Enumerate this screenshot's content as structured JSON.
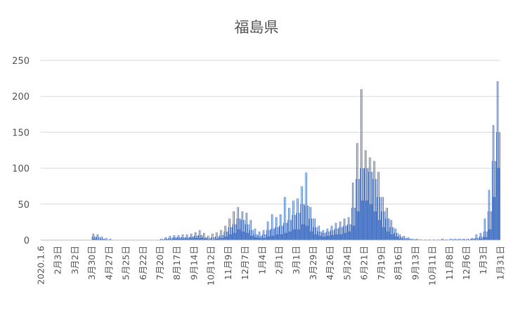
{
  "chart_data": {
    "type": "bar",
    "title": "福島県",
    "xlabel": "",
    "ylabel": "",
    "ylim": [
      0,
      250
    ],
    "yticks": [
      0,
      50,
      100,
      150,
      200,
      250
    ],
    "grid": true,
    "legend": "none",
    "bar_color": "#4472c4",
    "x_start": "2020.1.6",
    "x_end": "2022.1.31",
    "x_tick_labels": [
      "2020.1.6",
      "2月3日",
      "3月2日",
      "3月30日",
      "4月27日",
      "5月25日",
      "6月22日",
      "7月20日",
      "8月17日",
      "9月14日",
      "10月12日",
      "11月9日",
      "12月7日",
      "1月4日",
      "2月1日",
      "3月1日",
      "3月29日",
      "4月26日",
      "5月24日",
      "6月21日",
      "7月19日",
      "8月16日",
      "9月13日",
      "10月11日",
      "11月8日",
      "12月6日",
      "1月3日",
      "1月31日"
    ],
    "weekly_profile": [
      [
        0,
        0,
        0
      ],
      [
        0,
        0,
        0
      ],
      [
        0,
        0,
        0
      ],
      [
        0,
        0,
        0
      ],
      [
        0,
        0,
        0
      ],
      [
        0,
        0,
        0
      ],
      [
        0,
        0,
        0
      ],
      [
        0,
        0,
        0
      ],
      [
        0,
        0,
        0
      ],
      [
        0,
        0,
        0
      ],
      [
        0,
        0,
        0
      ],
      [
        0,
        0,
        0
      ],
      [
        2,
        5,
        9
      ],
      [
        1,
        4,
        8
      ],
      [
        1,
        2,
        5
      ],
      [
        0,
        1,
        3
      ],
      [
        0,
        0,
        2
      ],
      [
        0,
        0,
        0
      ],
      [
        0,
        0,
        0
      ],
      [
        0,
        0,
        0
      ],
      [
        0,
        0,
        0
      ],
      [
        0,
        0,
        0
      ],
      [
        0,
        0,
        0
      ],
      [
        0,
        0,
        0
      ],
      [
        0,
        0,
        0
      ],
      [
        0,
        0,
        0
      ],
      [
        0,
        0,
        0
      ],
      [
        0,
        0,
        0
      ],
      [
        0,
        1,
        2
      ],
      [
        1,
        2,
        4
      ],
      [
        1,
        3,
        6
      ],
      [
        2,
        4,
        7
      ],
      [
        2,
        4,
        7
      ],
      [
        2,
        4,
        8
      ],
      [
        2,
        4,
        8
      ],
      [
        3,
        5,
        9
      ],
      [
        3,
        6,
        11
      ],
      [
        3,
        7,
        14
      ],
      [
        2,
        4,
        10
      ],
      [
        1,
        3,
        6
      ],
      [
        1,
        4,
        9
      ],
      [
        2,
        5,
        11
      ],
      [
        3,
        7,
        14
      ],
      [
        5,
        12,
        20
      ],
      [
        8,
        18,
        30
      ],
      [
        10,
        22,
        40
      ],
      [
        15,
        30,
        46
      ],
      [
        12,
        28,
        40
      ],
      [
        10,
        22,
        38
      ],
      [
        6,
        14,
        28
      ],
      [
        4,
        8,
        16
      ],
      [
        3,
        6,
        12
      ],
      [
        3,
        8,
        14
      ],
      [
        5,
        14,
        26
      ],
      [
        6,
        16,
        36
      ],
      [
        8,
        18,
        32
      ],
      [
        8,
        20,
        36
      ],
      [
        10,
        24,
        60
      ],
      [
        12,
        28,
        45
      ],
      [
        15,
        35,
        55
      ],
      [
        15,
        38,
        58
      ],
      [
        22,
        50,
        75
      ],
      [
        20,
        48,
        94
      ],
      [
        12,
        30,
        46
      ],
      [
        8,
        18,
        30
      ],
      [
        6,
        12,
        20
      ],
      [
        5,
        10,
        14
      ],
      [
        6,
        12,
        16
      ],
      [
        7,
        14,
        20
      ],
      [
        8,
        16,
        24
      ],
      [
        8,
        18,
        26
      ],
      [
        10,
        20,
        30
      ],
      [
        12,
        22,
        32
      ],
      [
        20,
        45,
        80
      ],
      [
        40,
        85,
        135
      ],
      [
        55,
        100,
        210
      ],
      [
        55,
        100,
        125
      ],
      [
        50,
        95,
        115
      ],
      [
        40,
        85,
        110
      ],
      [
        28,
        60,
        95
      ],
      [
        18,
        40,
        60
      ],
      [
        12,
        30,
        45
      ],
      [
        8,
        18,
        28
      ],
      [
        5,
        10,
        16
      ],
      [
        2,
        5,
        8
      ],
      [
        1,
        3,
        6
      ],
      [
        1,
        2,
        4
      ],
      [
        0,
        1,
        2
      ],
      [
        0,
        1,
        2
      ],
      [
        0,
        0,
        1
      ],
      [
        0,
        0,
        1
      ],
      [
        0,
        0,
        1
      ],
      [
        0,
        0,
        1
      ],
      [
        0,
        0,
        1
      ],
      [
        0,
        1,
        2
      ],
      [
        0,
        0,
        1
      ],
      [
        0,
        1,
        2
      ],
      [
        0,
        1,
        2
      ],
      [
        0,
        1,
        2
      ],
      [
        0,
        1,
        2
      ],
      [
        0,
        1,
        2
      ],
      [
        1,
        2,
        3
      ],
      [
        1,
        3,
        8
      ],
      [
        2,
        5,
        10
      ],
      [
        4,
        12,
        30
      ],
      [
        15,
        40,
        70
      ],
      [
        60,
        110,
        160
      ],
      [
        100,
        150,
        221
      ]
    ]
  }
}
